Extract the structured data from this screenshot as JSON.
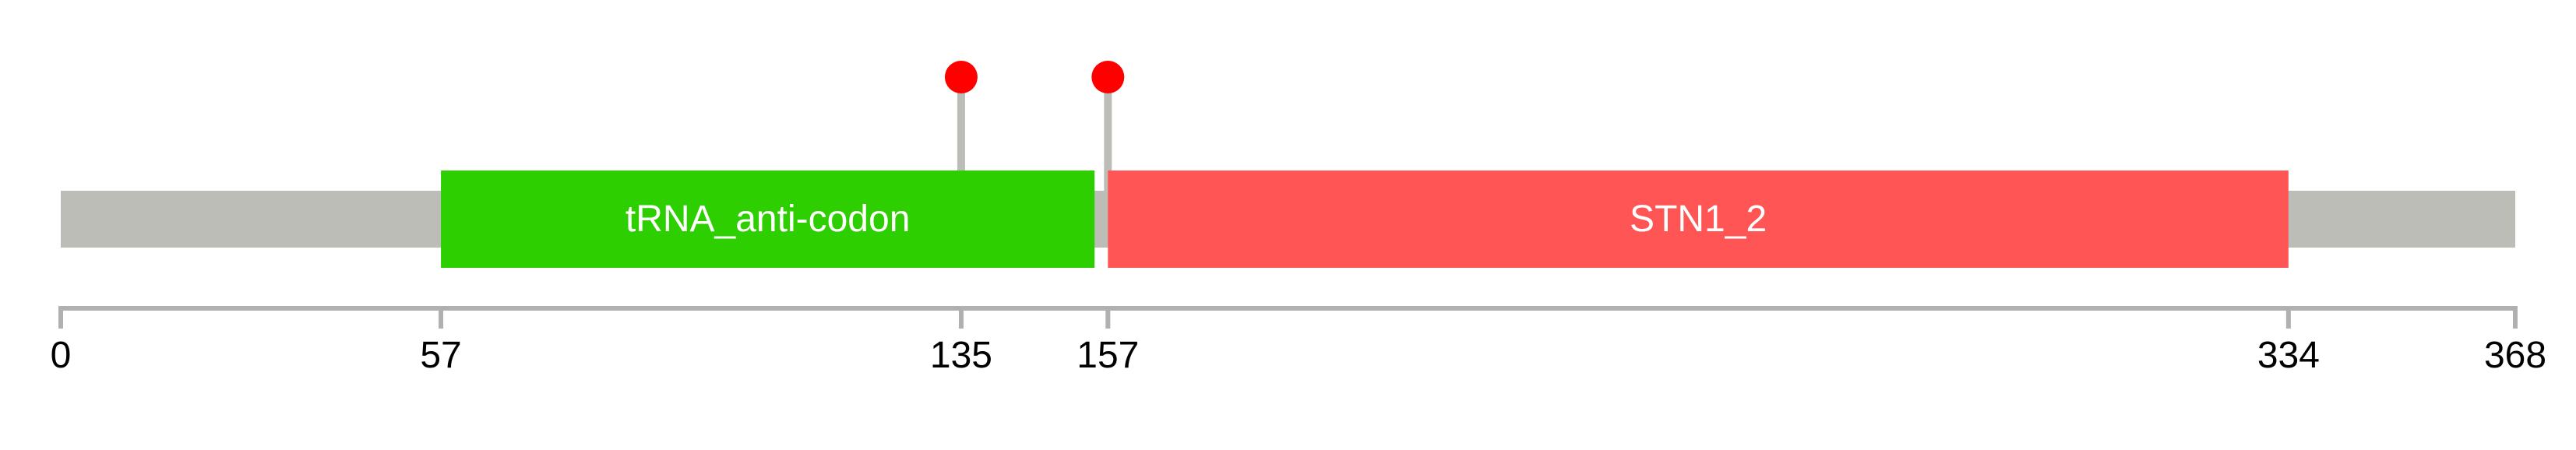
{
  "protein": {
    "length": 368,
    "backbone_color": "#bbbdb6",
    "domains": [
      {
        "name": "tRNA_anti-codon",
        "start": 57,
        "end": 155,
        "color": "#2ecf00"
      },
      {
        "name": "STN1_2",
        "start": 157,
        "end": 334,
        "color": "#ff5555"
      }
    ],
    "mutations": [
      {
        "position": 135,
        "color": "#ff0000"
      },
      {
        "position": 157,
        "color": "#ff0000"
      }
    ]
  },
  "axis": {
    "ticks": [
      {
        "value": 0,
        "label": "0"
      },
      {
        "value": 57,
        "label": "57"
      },
      {
        "value": 135,
        "label": "135"
      },
      {
        "value": 157,
        "label": "157"
      },
      {
        "value": 334,
        "label": "334"
      },
      {
        "value": 368,
        "label": "368"
      }
    ],
    "color": "#b0b0b0"
  }
}
